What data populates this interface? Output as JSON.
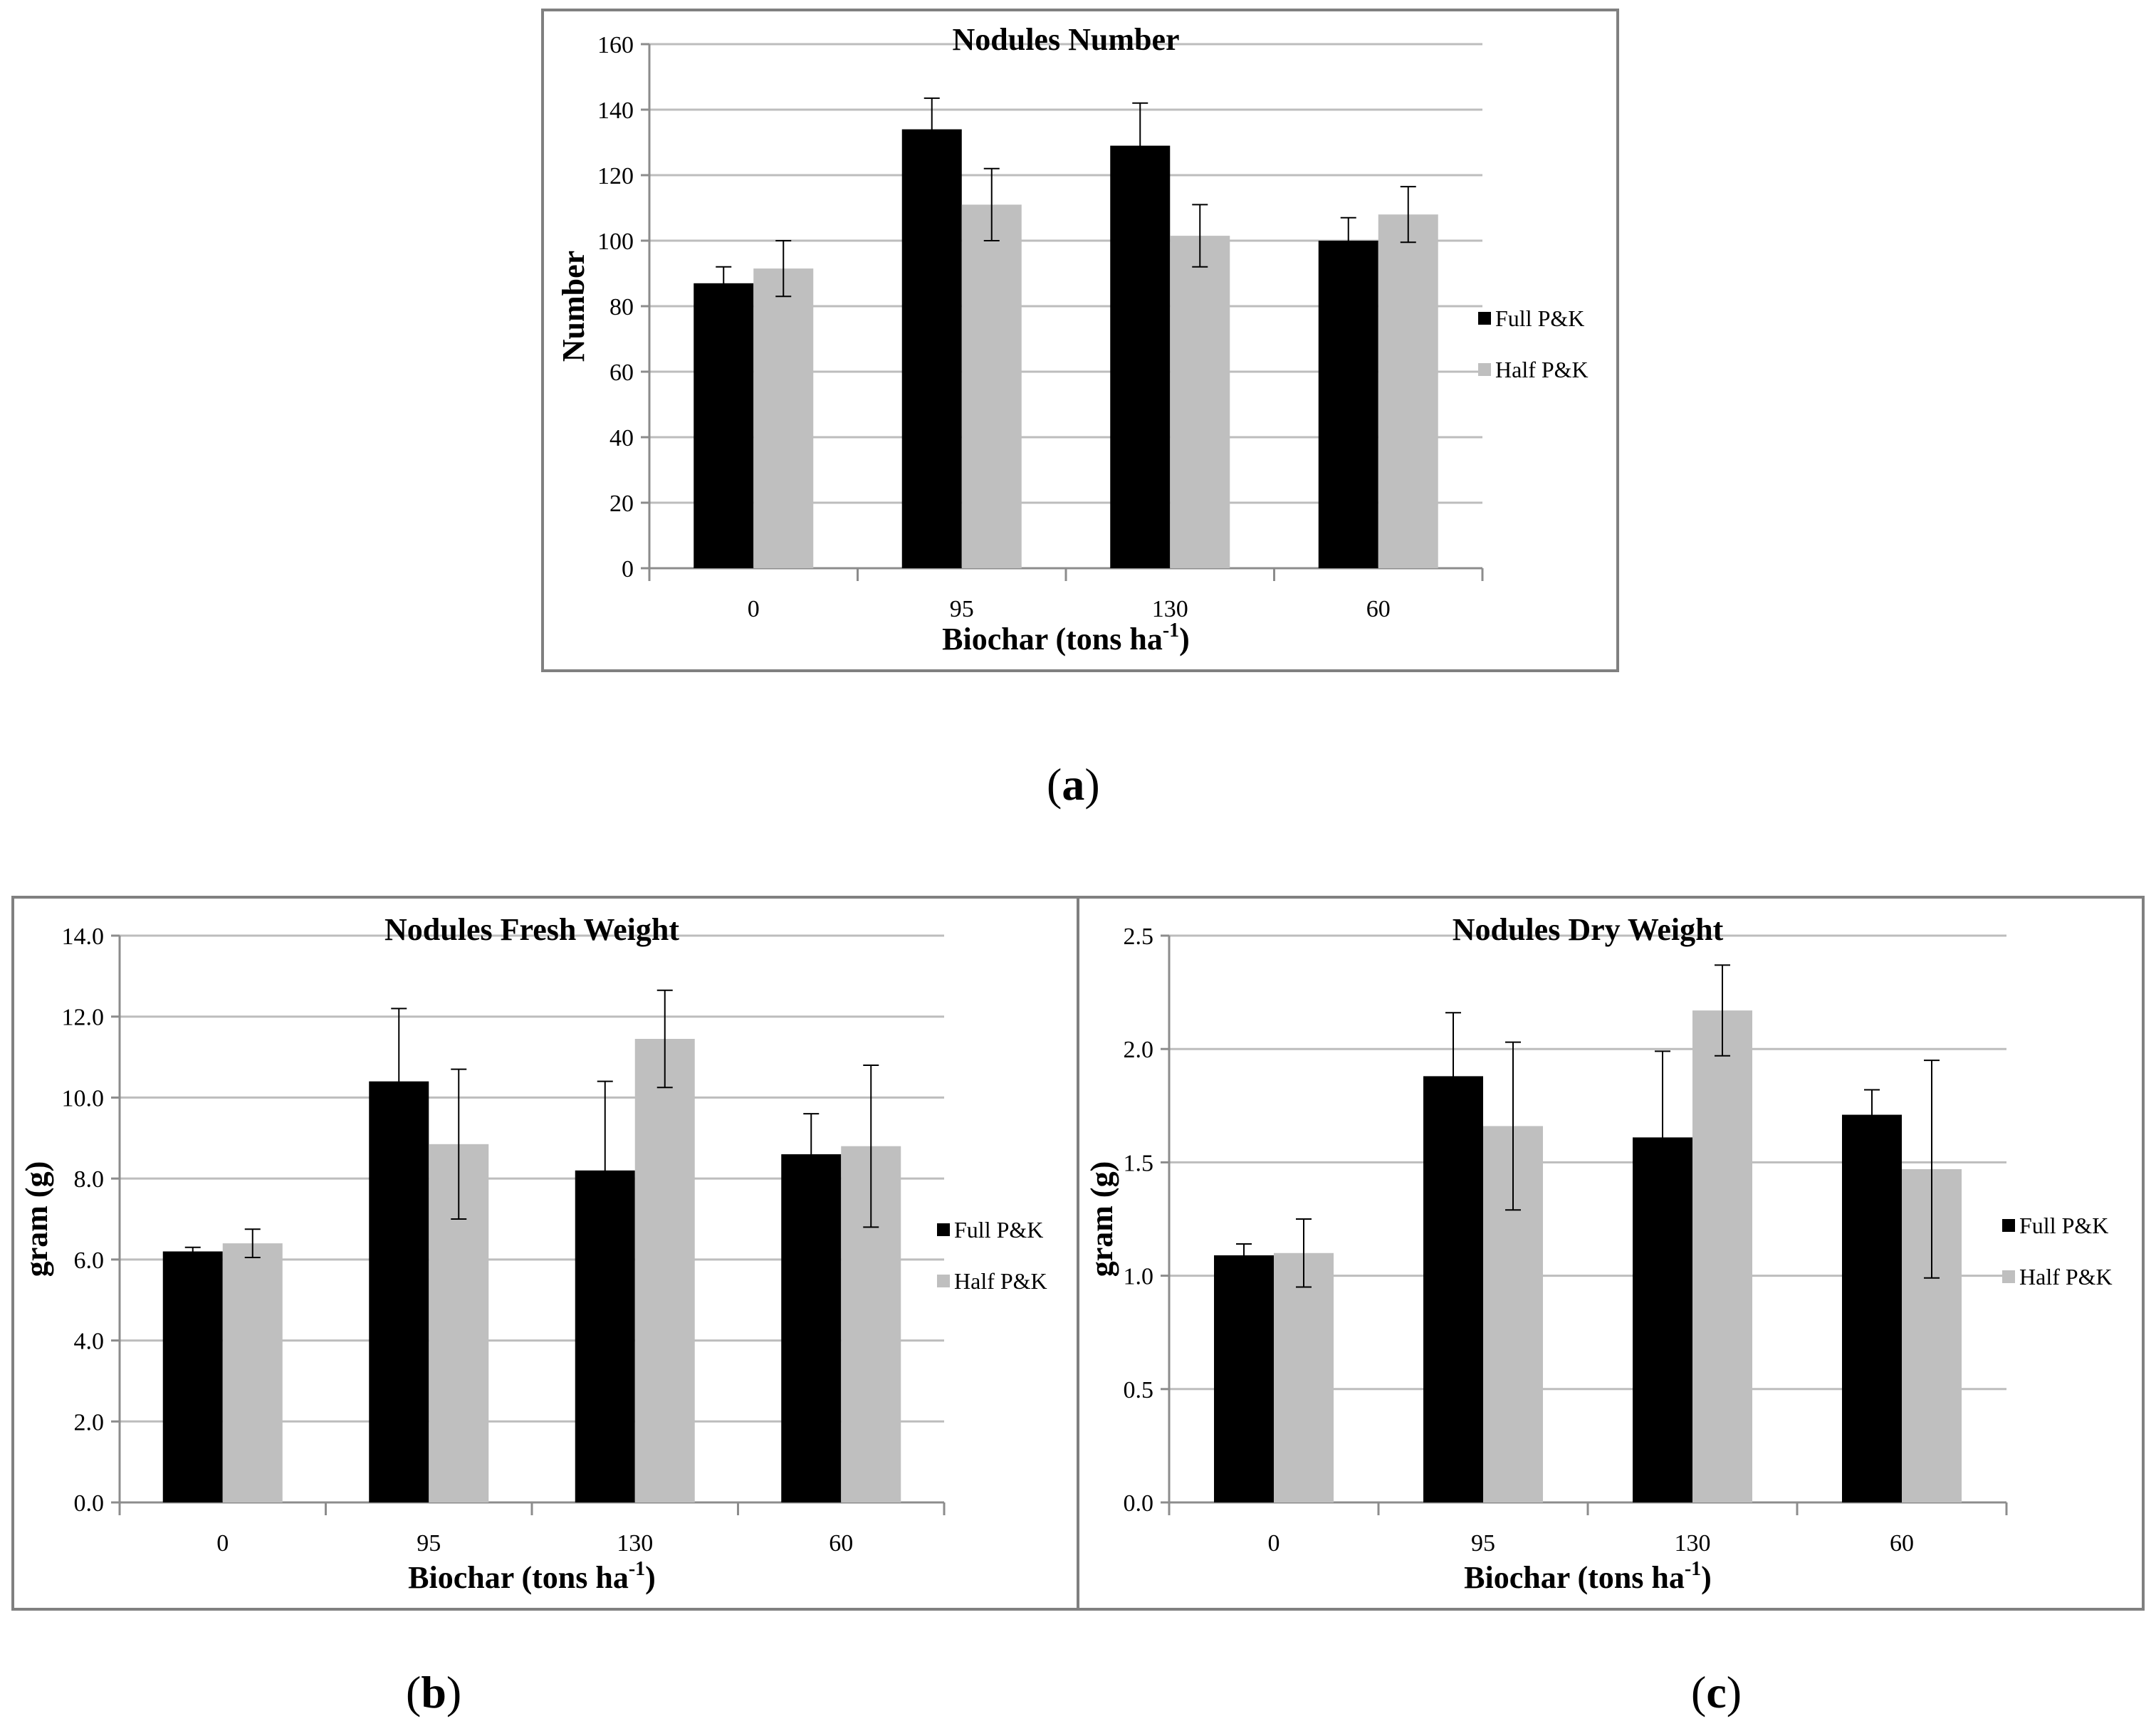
{
  "panels": [
    {
      "id": "a",
      "label": "a"
    },
    {
      "id": "b",
      "label": "b"
    },
    {
      "id": "c",
      "label": "c"
    }
  ],
  "chart_data": [
    {
      "type": "bar",
      "title": "Nodules Number",
      "xlabel": "Biochar (tons ha",
      "xlabel_sup": "-1",
      "xlabel_tail": ")",
      "ylabel": "Number",
      "categories": [
        "0",
        "95",
        "130",
        "60"
      ],
      "ylim": [
        0,
        160
      ],
      "yticks": [
        "0",
        "20",
        "40",
        "60",
        "80",
        "100",
        "120",
        "140",
        "160"
      ],
      "legend_position": "right",
      "colors": {
        "Full P&K": "#000000",
        "Half P&K": "#bfbfbf"
      },
      "series": [
        {
          "name": "Full P&K",
          "values": [
            87,
            134,
            129,
            100
          ],
          "errors": [
            5,
            9.5,
            13,
            7
          ]
        },
        {
          "name": "Half P&K",
          "values": [
            91.5,
            111,
            101.5,
            108
          ],
          "errors": [
            8.5,
            11,
            9.5,
            8.5
          ]
        }
      ]
    },
    {
      "type": "bar",
      "title": "Nodules Fresh Weight",
      "xlabel": "Biochar (tons ha",
      "xlabel_sup": "-1",
      "xlabel_tail": ")",
      "ylabel": "gram (g)",
      "categories": [
        "0",
        "95",
        "130",
        "60"
      ],
      "ylim": [
        0,
        14
      ],
      "yticks": [
        "0.0",
        "2.0",
        "4.0",
        "6.0",
        "8.0",
        "10.0",
        "12.0",
        "14.0"
      ],
      "legend_position": "right",
      "colors": {
        "Full P&K": "#000000",
        "Half P&K": "#bfbfbf"
      },
      "series": [
        {
          "name": "Full P&K",
          "values": [
            6.2,
            10.4,
            8.2,
            8.6
          ],
          "errors": [
            0.1,
            1.8,
            2.2,
            1.0
          ]
        },
        {
          "name": "Half P&K",
          "values": [
            6.4,
            8.85,
            11.45,
            8.8
          ],
          "errors": [
            0.35,
            1.85,
            1.2,
            2.0
          ]
        }
      ]
    },
    {
      "type": "bar",
      "title": "Nodules Dry Weight",
      "xlabel": "Biochar (tons ha",
      "xlabel_sup": "-1",
      "xlabel_tail": ")",
      "ylabel": "gram (g)",
      "categories": [
        "0",
        "95",
        "130",
        "60"
      ],
      "ylim": [
        0,
        2.5
      ],
      "yticks": [
        "0.0",
        "0.5",
        "1.0",
        "1.5",
        "2.0",
        "2.5"
      ],
      "legend_position": "right",
      "colors": {
        "Full P&K": "#000000",
        "Half P&K": "#bfbfbf"
      },
      "series": [
        {
          "name": "Full P&K",
          "values": [
            1.09,
            1.88,
            1.61,
            1.71
          ],
          "errors": [
            0.05,
            0.28,
            0.38,
            0.11
          ]
        },
        {
          "name": "Half P&K",
          "values": [
            1.1,
            1.66,
            2.17,
            1.47
          ],
          "errors": [
            0.15,
            0.37,
            0.2,
            0.48
          ]
        }
      ]
    }
  ]
}
